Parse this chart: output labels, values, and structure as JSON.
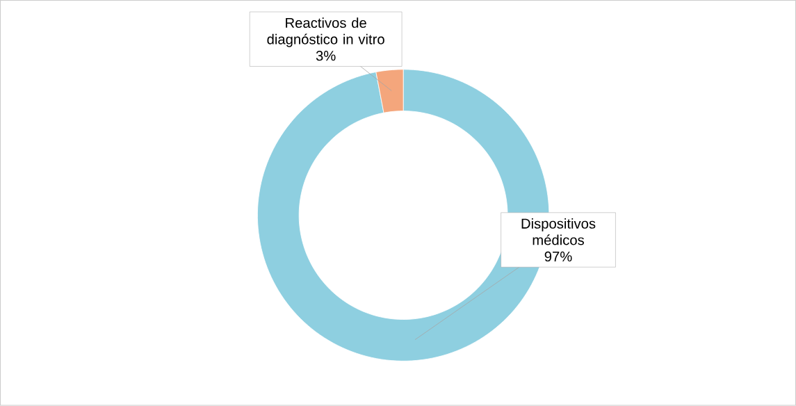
{
  "chart_data": {
    "type": "donut",
    "categories": [
      "Dispositivos médicos",
      "Reactivos de diagnóstico in vitro"
    ],
    "values": [
      97,
      3
    ],
    "value_labels": [
      "97%",
      "3%"
    ],
    "colors": [
      "#8ecfe0",
      "#f4a67c"
    ]
  }
}
